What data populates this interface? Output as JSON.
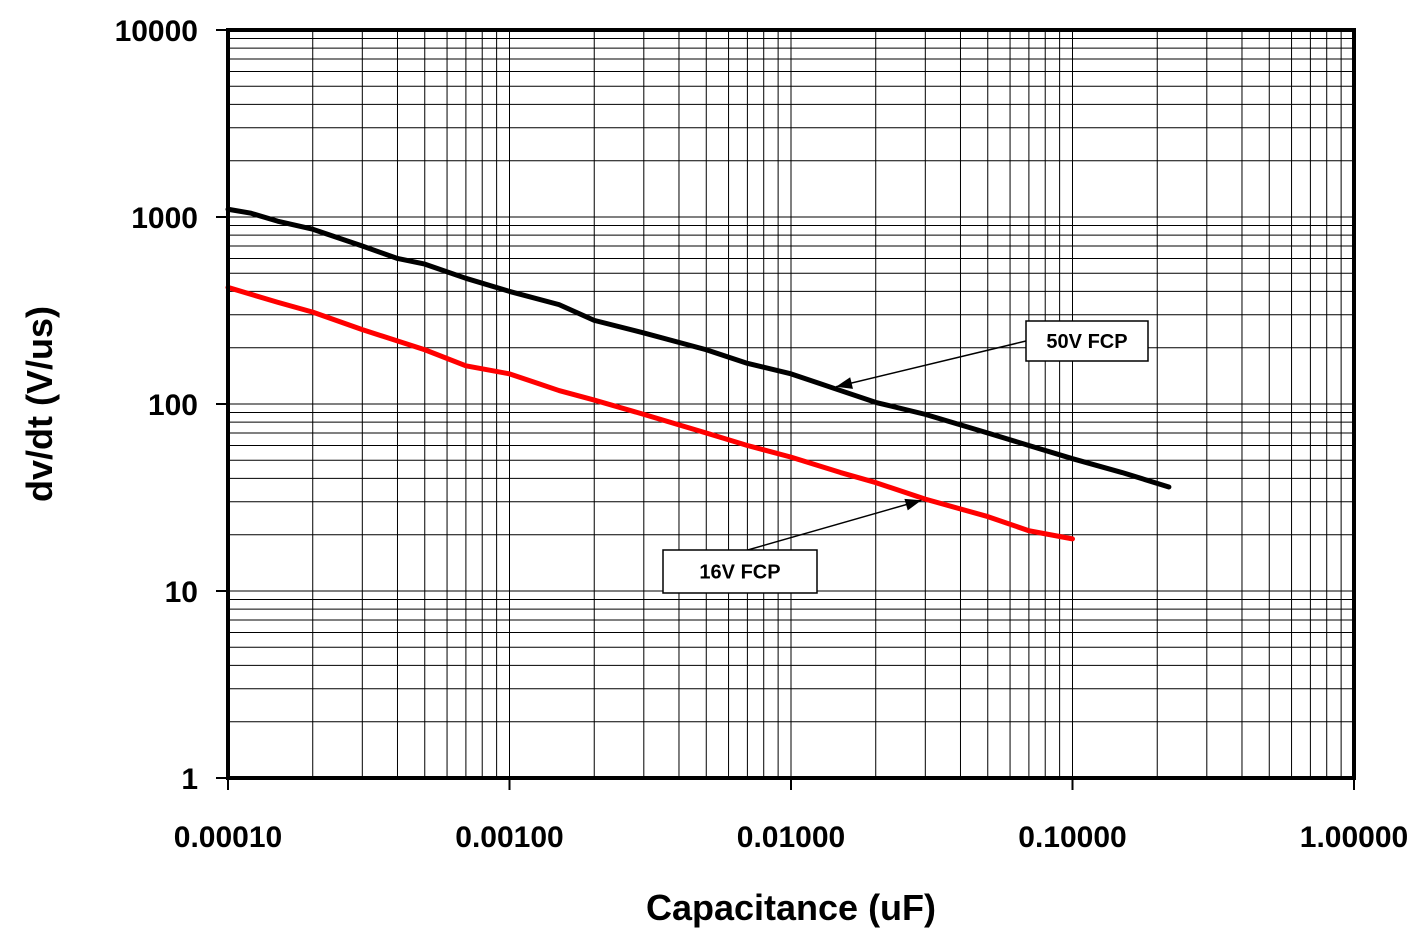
{
  "chart_data": {
    "type": "line",
    "title": "",
    "xlabel": "Capacitance (uF)",
    "ylabel": "dv/dt  (V/us)",
    "x_scale": "log",
    "y_scale": "log",
    "xlim": [
      0.0001,
      1.0
    ],
    "ylim": [
      1,
      10000
    ],
    "x_tick_labels": [
      "0.00010",
      "0.00100",
      "0.01000",
      "0.10000",
      "1.00000"
    ],
    "y_tick_labels": [
      "1",
      "10",
      "100",
      "1000",
      "10000"
    ],
    "grid": true,
    "series": [
      {
        "name": "50V FCP",
        "color": "#000000",
        "points": [
          [
            0.0001,
            1100
          ],
          [
            0.00012,
            1050
          ],
          [
            0.00015,
            950
          ],
          [
            0.0002,
            860
          ],
          [
            0.0003,
            700
          ],
          [
            0.0004,
            600
          ],
          [
            0.0005,
            560
          ],
          [
            0.0007,
            470
          ],
          [
            0.001,
            400
          ],
          [
            0.0015,
            340
          ],
          [
            0.002,
            280
          ],
          [
            0.003,
            240
          ],
          [
            0.005,
            195
          ],
          [
            0.007,
            165
          ],
          [
            0.01,
            145
          ],
          [
            0.015,
            118
          ],
          [
            0.02,
            102
          ],
          [
            0.03,
            88
          ],
          [
            0.05,
            70
          ],
          [
            0.07,
            60
          ],
          [
            0.1,
            51
          ],
          [
            0.15,
            43
          ],
          [
            0.22,
            36
          ]
        ]
      },
      {
        "name": "16V FCP",
        "color": "#ff0000",
        "points": [
          [
            0.0001,
            420
          ],
          [
            0.00015,
            350
          ],
          [
            0.0002,
            310
          ],
          [
            0.0003,
            250
          ],
          [
            0.0005,
            195
          ],
          [
            0.0007,
            160
          ],
          [
            0.001,
            145
          ],
          [
            0.0015,
            118
          ],
          [
            0.002,
            105
          ],
          [
            0.003,
            88
          ],
          [
            0.005,
            70
          ],
          [
            0.007,
            60
          ],
          [
            0.01,
            52
          ],
          [
            0.015,
            43
          ],
          [
            0.02,
            38
          ],
          [
            0.03,
            31
          ],
          [
            0.05,
            25
          ],
          [
            0.07,
            21
          ],
          [
            0.1,
            19
          ]
        ]
      }
    ],
    "annotations": [
      {
        "text": "50V FCP",
        "series": "50V FCP",
        "point_x": 0.014
      },
      {
        "text": "16V FCP",
        "series": "16V FCP",
        "point_x": 0.03
      }
    ]
  }
}
